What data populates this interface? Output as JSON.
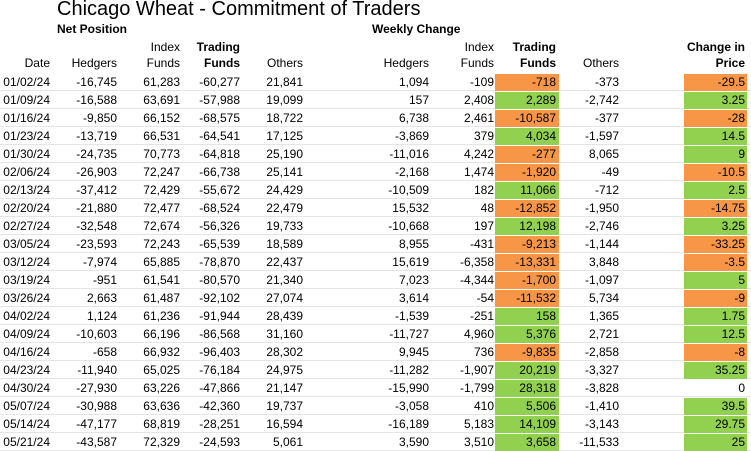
{
  "title": "Chicago Wheat - Commitment of Traders",
  "section_net": "Net Position",
  "section_weekly": "Weekly Change",
  "headers": {
    "date": "Date",
    "hedgers": "Hedgers",
    "index_1": "Index",
    "index_2": "Funds",
    "trading_1": "Trading",
    "trading_2": "Funds",
    "others": "Others",
    "w_hedgers": "Hedgers",
    "w_index_1": "Index",
    "w_index_2": "Funds",
    "w_trading_1": "Trading",
    "w_trading_2": "Funds",
    "w_others": "Others",
    "price_1": "Change in",
    "price_2": "Price"
  },
  "colors": {
    "positive": "#92d050",
    "negative": "#f79646"
  },
  "rows": [
    {
      "date": "01/02/24",
      "hedgers": "-16,745",
      "index": "61,283",
      "trading": "-60,277",
      "others": "21,841",
      "w_hedgers": "1,094",
      "w_index": "-109",
      "w_trading": "-718",
      "w_others": "-373",
      "price": "-29.5"
    },
    {
      "date": "01/09/24",
      "hedgers": "-16,588",
      "index": "63,691",
      "trading": "-57,988",
      "others": "19,099",
      "w_hedgers": "157",
      "w_index": "2,408",
      "w_trading": "2,289",
      "w_others": "-2,742",
      "price": "3.25"
    },
    {
      "date": "01/16/24",
      "hedgers": "-9,850",
      "index": "66,152",
      "trading": "-68,575",
      "others": "18,722",
      "w_hedgers": "6,738",
      "w_index": "2,461",
      "w_trading": "-10,587",
      "w_others": "-377",
      "price": "-28"
    },
    {
      "date": "01/23/24",
      "hedgers": "-13,719",
      "index": "66,531",
      "trading": "-64,541",
      "others": "17,125",
      "w_hedgers": "-3,869",
      "w_index": "379",
      "w_trading": "4,034",
      "w_others": "-1,597",
      "price": "14.5"
    },
    {
      "date": "01/30/24",
      "hedgers": "-24,735",
      "index": "70,773",
      "trading": "-64,818",
      "others": "25,190",
      "w_hedgers": "-11,016",
      "w_index": "4,242",
      "w_trading": "-277",
      "w_others": "8,065",
      "price": "9"
    },
    {
      "date": "02/06/24",
      "hedgers": "-26,903",
      "index": "72,247",
      "trading": "-66,738",
      "others": "25,141",
      "w_hedgers": "-2,168",
      "w_index": "1,474",
      "w_trading": "-1,920",
      "w_others": "-49",
      "price": "-10.5"
    },
    {
      "date": "02/13/24",
      "hedgers": "-37,412",
      "index": "72,429",
      "trading": "-55,672",
      "others": "24,429",
      "w_hedgers": "-10,509",
      "w_index": "182",
      "w_trading": "11,066",
      "w_others": "-712",
      "price": "2.5"
    },
    {
      "date": "02/20/24",
      "hedgers": "-21,880",
      "index": "72,477",
      "trading": "-68,524",
      "others": "22,479",
      "w_hedgers": "15,532",
      "w_index": "48",
      "w_trading": "-12,852",
      "w_others": "-1,950",
      "price": "-14.75"
    },
    {
      "date": "02/27/24",
      "hedgers": "-32,548",
      "index": "72,674",
      "trading": "-56,326",
      "others": "19,733",
      "w_hedgers": "-10,668",
      "w_index": "197",
      "w_trading": "12,198",
      "w_others": "-2,746",
      "price": "3.25"
    },
    {
      "date": "03/05/24",
      "hedgers": "-23,593",
      "index": "72,243",
      "trading": "-65,539",
      "others": "18,589",
      "w_hedgers": "8,955",
      "w_index": "-431",
      "w_trading": "-9,213",
      "w_others": "-1,144",
      "price": "-33.25"
    },
    {
      "date": "03/12/24",
      "hedgers": "-7,974",
      "index": "65,885",
      "trading": "-78,870",
      "others": "22,437",
      "w_hedgers": "15,619",
      "w_index": "-6,358",
      "w_trading": "-13,331",
      "w_others": "3,848",
      "price": "-3.5"
    },
    {
      "date": "03/19/24",
      "hedgers": "-951",
      "index": "61,541",
      "trading": "-80,570",
      "others": "21,340",
      "w_hedgers": "7,023",
      "w_index": "-4,344",
      "w_trading": "-1,700",
      "w_others": "-1,097",
      "price": "5"
    },
    {
      "date": "03/26/24",
      "hedgers": "2,663",
      "index": "61,487",
      "trading": "-92,102",
      "others": "27,074",
      "w_hedgers": "3,614",
      "w_index": "-54",
      "w_trading": "-11,532",
      "w_others": "5,734",
      "price": "-9"
    },
    {
      "date": "04/02/24",
      "hedgers": "1,124",
      "index": "61,236",
      "trading": "-91,944",
      "others": "28,439",
      "w_hedgers": "-1,539",
      "w_index": "-251",
      "w_trading": "158",
      "w_others": "1,365",
      "price": "1.75"
    },
    {
      "date": "04/09/24",
      "hedgers": "-10,603",
      "index": "66,196",
      "trading": "-86,568",
      "others": "31,160",
      "w_hedgers": "-11,727",
      "w_index": "4,960",
      "w_trading": "5,376",
      "w_others": "2,721",
      "price": "12.5"
    },
    {
      "date": "04/16/24",
      "hedgers": "-658",
      "index": "66,932",
      "trading": "-96,403",
      "others": "28,302",
      "w_hedgers": "9,945",
      "w_index": "736",
      "w_trading": "-9,835",
      "w_others": "-2,858",
      "price": "-8"
    },
    {
      "date": "04/23/24",
      "hedgers": "-11,940",
      "index": "65,025",
      "trading": "-76,184",
      "others": "24,975",
      "w_hedgers": "-11,282",
      "w_index": "-1,907",
      "w_trading": "20,219",
      "w_others": "-3,327",
      "price": "35.25"
    },
    {
      "date": "04/30/24",
      "hedgers": "-27,930",
      "index": "63,226",
      "trading": "-47,866",
      "others": "21,147",
      "w_hedgers": "-15,990",
      "w_index": "-1,799",
      "w_trading": "28,318",
      "w_others": "-3,828",
      "price": "0"
    },
    {
      "date": "05/07/24",
      "hedgers": "-30,988",
      "index": "63,636",
      "trading": "-42,360",
      "others": "19,737",
      "w_hedgers": "-3,058",
      "w_index": "410",
      "w_trading": "5,506",
      "w_others": "-1,410",
      "price": "39.5"
    },
    {
      "date": "05/14/24",
      "hedgers": "-47,177",
      "index": "68,819",
      "trading": "-28,251",
      "others": "16,594",
      "w_hedgers": "-16,189",
      "w_index": "5,183",
      "w_trading": "14,109",
      "w_others": "-3,143",
      "price": "29.75"
    },
    {
      "date": "05/21/24",
      "hedgers": "-43,587",
      "index": "72,329",
      "trading": "-24,593",
      "others": "5,061",
      "w_hedgers": "3,590",
      "w_index": "3,510",
      "w_trading": "3,658",
      "w_others": "-11,533",
      "price": "25"
    }
  ]
}
